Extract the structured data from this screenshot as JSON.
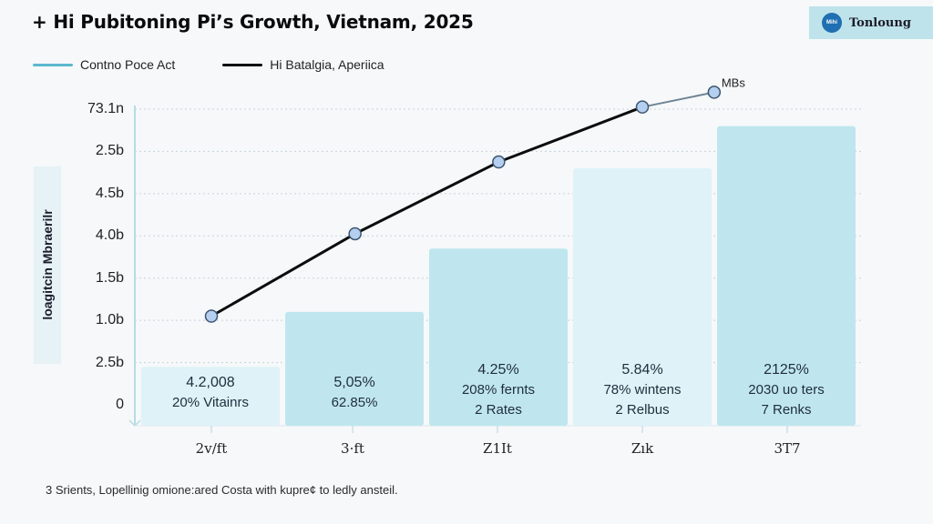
{
  "header": {
    "title": "+ Hi Pubitoning Pi’s Growth, Vietnam, 2025",
    "brand": {
      "logo_text": "Mihi",
      "name": "Tonloung",
      "logo_icon": "circle-logo-icon"
    }
  },
  "footnote": "3 Srients, Lopellinig omione:ared Costa with kupre¢ to ledly ansteil.",
  "colors": {
    "background": "#f6f8fa",
    "bar_fill": "#bfe6ee",
    "bar_fill_light": "#dff2f7",
    "line_series_1": "#5bb8cf",
    "line_series_2": "#0d0d0d",
    "marker_fill": "#b5cff0",
    "marker_stroke": "#3d5670",
    "brand_box": "#bfe3ea",
    "brand_logo": "#1f6fb2"
  },
  "chart_data": {
    "type": "bar",
    "title": "+ Hi Pubitoning Pi’s Growth, Vietnam, 2025",
    "xlabel": "",
    "ylabel": "loagitcin Mbraerilr",
    "categories": [
      "2v/ft",
      "3·ft",
      "Z1It",
      "Zık",
      "3T7"
    ],
    "y_ticks": [
      "0",
      "2.5b",
      "1.0b",
      "1.5b",
      "4.0b",
      "4.5b",
      "2.5b",
      "73.1n"
    ],
    "ylim_index": [
      0,
      7
    ],
    "grid": true,
    "legend": {
      "position": "top-left",
      "entries": [
        {
          "name": "Contno Poce Act",
          "color": "#5bb8cf"
        },
        {
          "name": "Hi Batalgia, Aperiica",
          "color": "#0d0d0d"
        }
      ]
    },
    "series": [
      {
        "name": "Contno Poce Act",
        "type": "bar",
        "values_tick_index": [
          0.9,
          2.2,
          3.7,
          5.6,
          6.6
        ],
        "labels": [
          [
            "4.2,008",
            "20% Vitainrs"
          ],
          [
            "5,05%",
            "62.85%"
          ],
          [
            "4.25%",
            "208% fernts",
            "2 Rates"
          ],
          [
            "5.84%",
            "78% wintens",
            "2 Relbus"
          ],
          [
            "2125%",
            "2030 uo ters",
            "7 Renks"
          ]
        ]
      },
      {
        "name": "Hi Batalgia, Aperiica",
        "type": "line",
        "x_positions": [
          0,
          1,
          2,
          3,
          3.5
        ],
        "values_tick_index": [
          2.1,
          4.05,
          5.75,
          7.05,
          7.4
        ],
        "end_annotation": "MBs"
      }
    ]
  }
}
